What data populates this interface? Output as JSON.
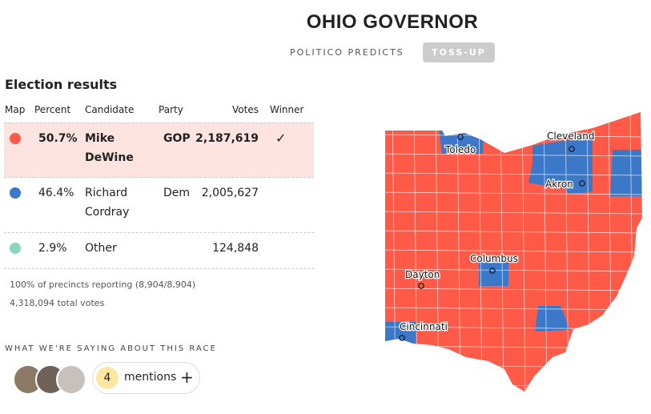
{
  "header": {
    "title": "OHIO GOVERNOR",
    "subtitle": "POLITICO PREDICTS",
    "rating": "TOSS-UP"
  },
  "results": {
    "heading": "Election results",
    "columns": [
      "Map",
      "Percent",
      "Candidate",
      "Party",
      "Votes",
      "Winner"
    ],
    "rows": [
      {
        "color": "#ff5a48",
        "percent": "50.7%",
        "candidate": "Mike DeWine",
        "party": "GOP",
        "votes": "2,187,619",
        "winner": "✓"
      },
      {
        "color": "#3c78c8",
        "percent": "46.4%",
        "candidate": "Richard Cordray",
        "party": "Dem",
        "votes": "2,005,627"
      },
      {
        "color": "#86d6c0",
        "percent": "2.9%",
        "candidate": "Other",
        "votes": "124,848"
      }
    ],
    "precincts": "100% of precincts reporting (8,904/8,904)",
    "total": "4,318,094 total votes"
  },
  "saying": {
    "heading": "WHAT WE'RE SAYING ABOUT THIS RACE",
    "count": "4",
    "label": "mentions"
  },
  "map": {
    "cities": [
      "Toledo",
      "Cleveland",
      "Akron",
      "Columbus",
      "Dayton",
      "Cincinnati"
    ]
  }
}
